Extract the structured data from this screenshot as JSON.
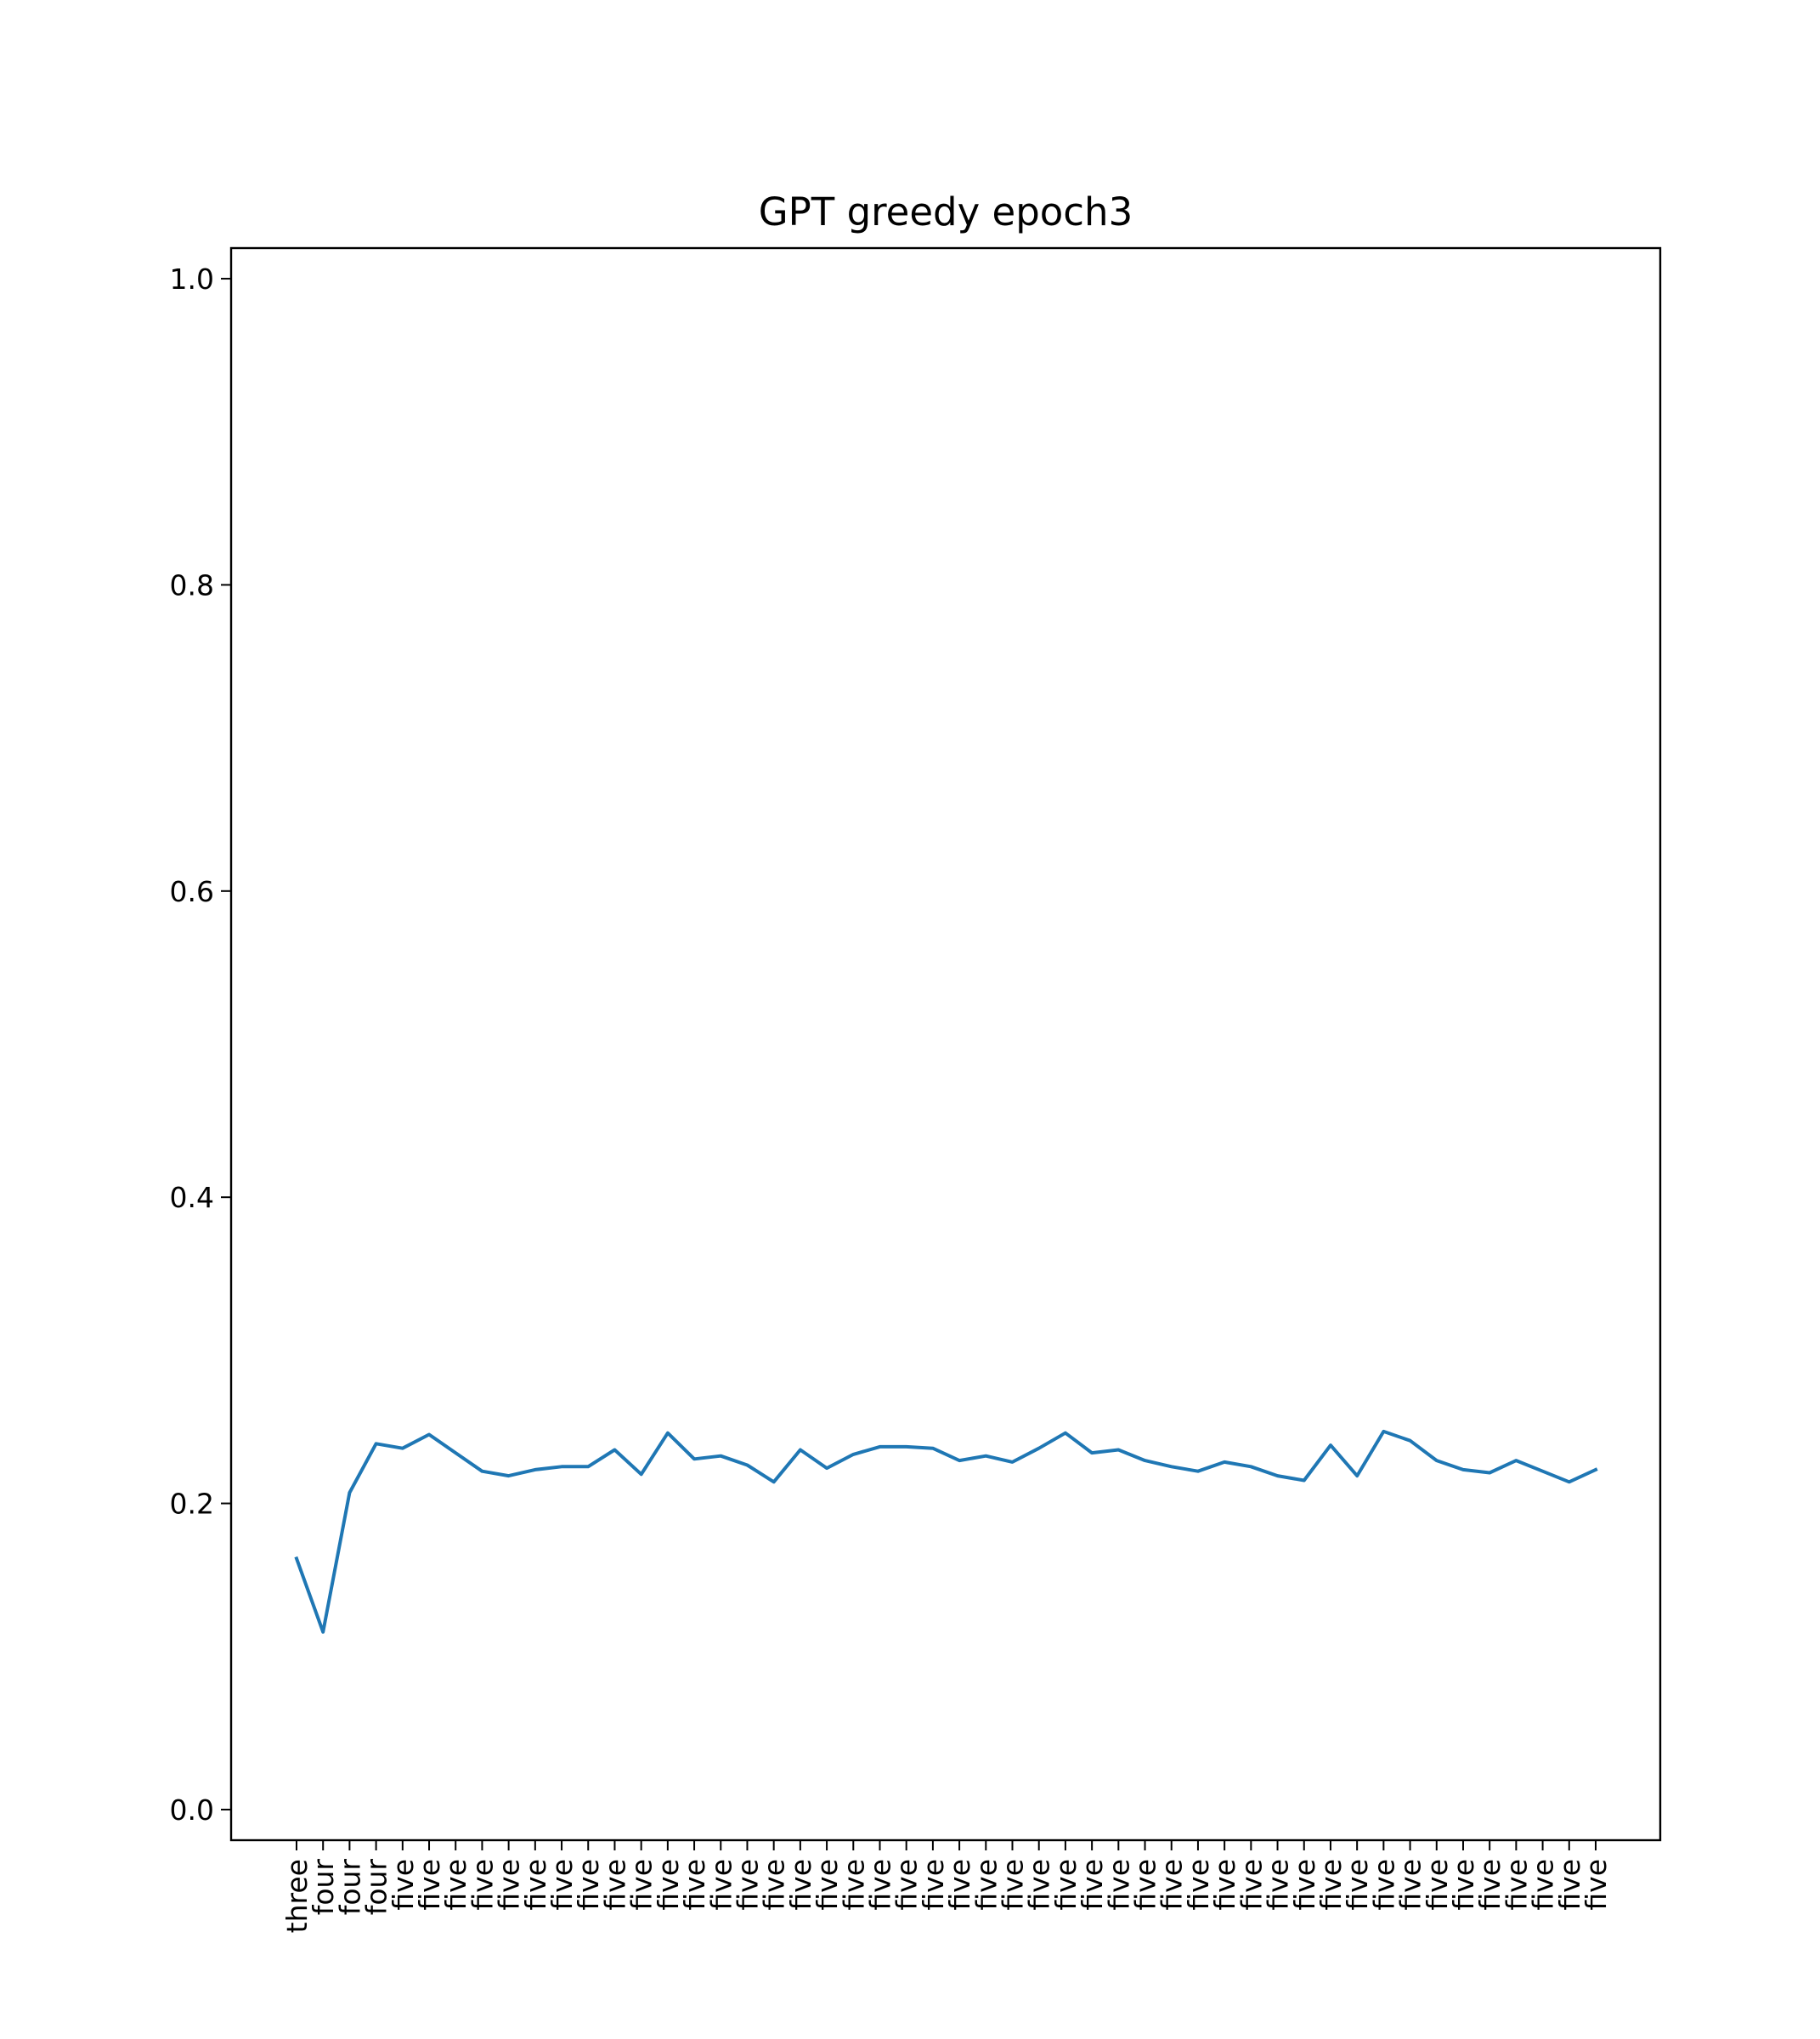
{
  "chart_data": {
    "type": "line",
    "title": "GPT greedy epoch3",
    "xlabel": "",
    "ylabel": "",
    "grid": false,
    "ylim": [
      -0.02,
      1.02
    ],
    "yticks": [
      0.0,
      0.2,
      0.4,
      0.6,
      0.8,
      1.0
    ],
    "ytick_labels": [
      "0.0",
      "0.2",
      "0.4",
      "0.6",
      "0.8",
      "1.0"
    ],
    "categories": [
      "three",
      "four",
      "four",
      "four",
      "five",
      "five",
      "five",
      "five",
      "five",
      "five",
      "five",
      "five",
      "five",
      "five",
      "five",
      "five",
      "five",
      "five",
      "five",
      "five",
      "five",
      "five",
      "five",
      "five",
      "five",
      "five",
      "five",
      "five",
      "five",
      "five",
      "five",
      "five",
      "five",
      "five",
      "five",
      "five",
      "five",
      "five",
      "five",
      "five",
      "five",
      "five",
      "five",
      "five",
      "five",
      "five",
      "five",
      "five",
      "five",
      "five"
    ],
    "series": [
      {
        "color": "#1f77b4",
        "values": [
          0.164,
          0.116,
          0.207,
          0.239,
          0.236,
          0.245,
          0.233,
          0.221,
          0.218,
          0.222,
          0.224,
          0.224,
          0.235,
          0.219,
          0.246,
          0.229,
          0.231,
          0.225,
          0.214,
          0.235,
          0.223,
          0.232,
          0.237,
          0.237,
          0.236,
          0.228,
          0.231,
          0.227,
          0.236,
          0.246,
          0.233,
          0.235,
          0.228,
          0.224,
          0.221,
          0.227,
          0.224,
          0.218,
          0.215,
          0.238,
          0.218,
          0.247,
          0.241,
          0.228,
          0.222,
          0.22,
          0.228,
          0.221,
          0.214,
          0.222
        ]
      }
    ]
  }
}
